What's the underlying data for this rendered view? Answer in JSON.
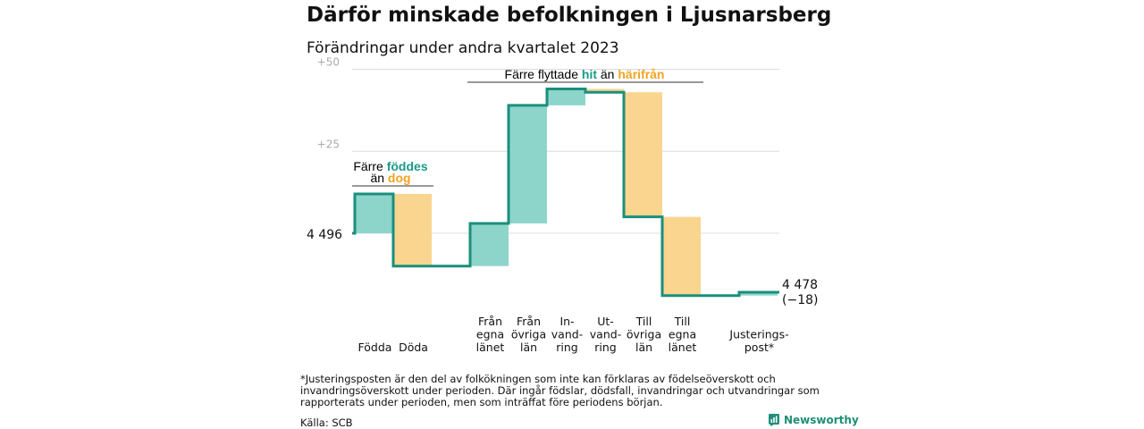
{
  "title": "Därför minskade befolkningen i Ljusnarsberg",
  "subtitle": "Förändringar under andra kvartalet 2023",
  "footnote": "*Justeringsposten är den del av folkökningen som inte kan förklaras av födelseöverskott och invandringsöverskott under perioden. Där ingår födslar, dödsfall, invandringar och utvandringar som rapporterats under perioden, men som inträffat före periodens början.",
  "source": "Källa: SCB",
  "brand": "Newsworthy",
  "colors": {
    "increase": "#8dd5cb",
    "decrease": "#fad58f",
    "line": "#1a8f7d",
    "grid": "#dcdcdc",
    "tick": "#aaaaaa"
  },
  "annotations": {
    "births": {
      "line1_a": "Färre ",
      "line1_b": "föddes",
      "line2_a": "än ",
      "line2_b": "dog"
    },
    "migration": {
      "a": "Färre flyttade ",
      "b": "hit",
      "c": " än ",
      "d": "härifrån"
    }
  },
  "chart_data": {
    "type": "waterfall",
    "start_value": 4496,
    "start_label": "4 496",
    "end_value": 4478,
    "end_label": "4 478",
    "end_change_label": "(−18)",
    "y_ticks": [
      {
        "value": 25,
        "label": "+25"
      },
      {
        "value": 50,
        "label": "+50"
      }
    ],
    "ylim": [
      -20,
      50
    ],
    "steps": [
      {
        "label": [
          "Födda"
        ],
        "change": 12
      },
      {
        "label": [
          "Döda"
        ],
        "change": -22
      },
      {
        "label": [
          "Från",
          "egna",
          "länet"
        ],
        "change": 13
      },
      {
        "label": [
          "Från",
          "övriga",
          "län"
        ],
        "change": 36
      },
      {
        "label": [
          "In-",
          "vand-",
          "ring"
        ],
        "change": 5
      },
      {
        "label": [
          "Ut-",
          "vand-",
          "ring"
        ],
        "change": -1
      },
      {
        "label": [
          "Till",
          "övriga",
          "län"
        ],
        "change": -38
      },
      {
        "label": [
          "Till",
          "egna",
          "länet"
        ],
        "change": -24
      },
      {
        "label": [
          "Justerings-",
          "post*"
        ],
        "change": 1
      }
    ]
  }
}
